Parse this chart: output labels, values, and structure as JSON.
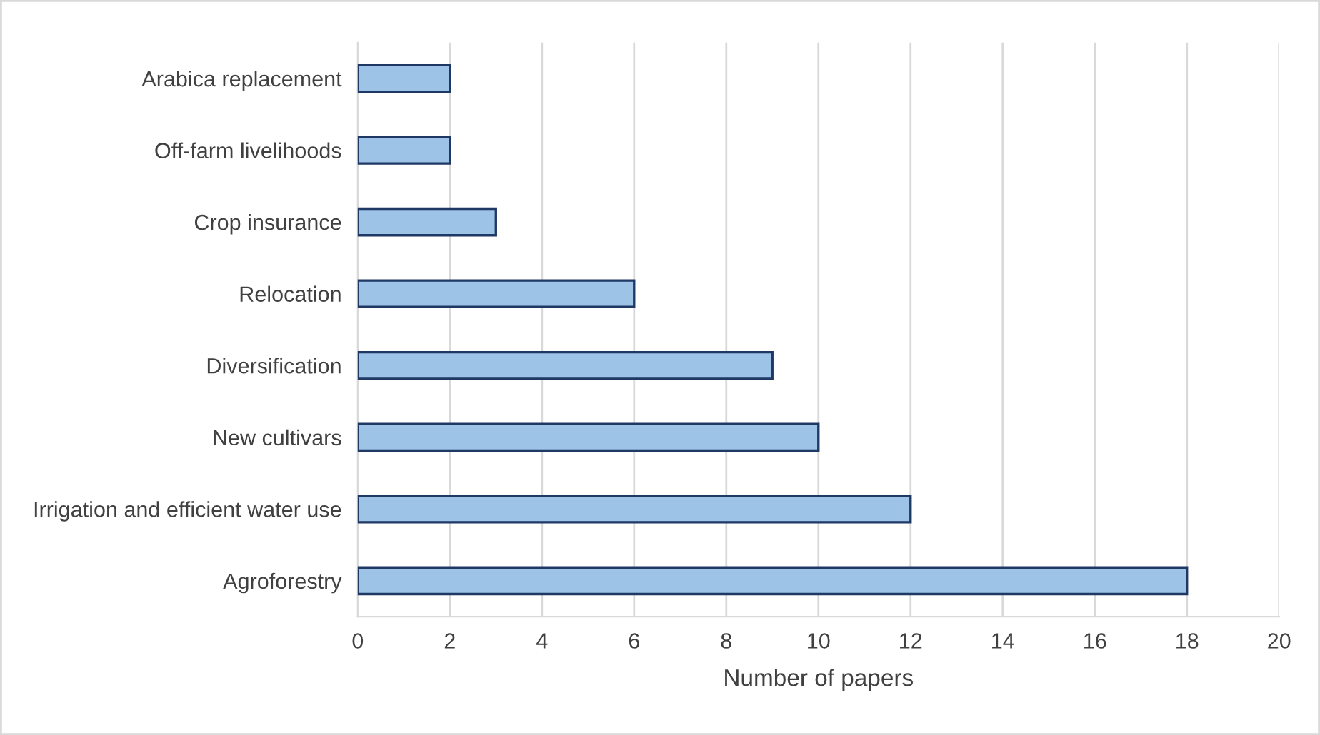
{
  "chart_data": {
    "type": "bar",
    "orientation": "horizontal",
    "xlabel": "Number of papers",
    "categories": [
      "Arabica replacement",
      "Off-farm livelihoods",
      "Crop insurance",
      "Relocation",
      "Diversification",
      "New cultivars",
      "Irrigation and efficient water use",
      "Agroforestry"
    ],
    "values": [
      2,
      2,
      3,
      6,
      9,
      10,
      12,
      18
    ],
    "color": "#9dc3e6",
    "xlim": [
      0,
      20
    ],
    "xticks": [
      0,
      2,
      4,
      6,
      8,
      10,
      12,
      14,
      16,
      18,
      20
    ],
    "grid": "x"
  }
}
